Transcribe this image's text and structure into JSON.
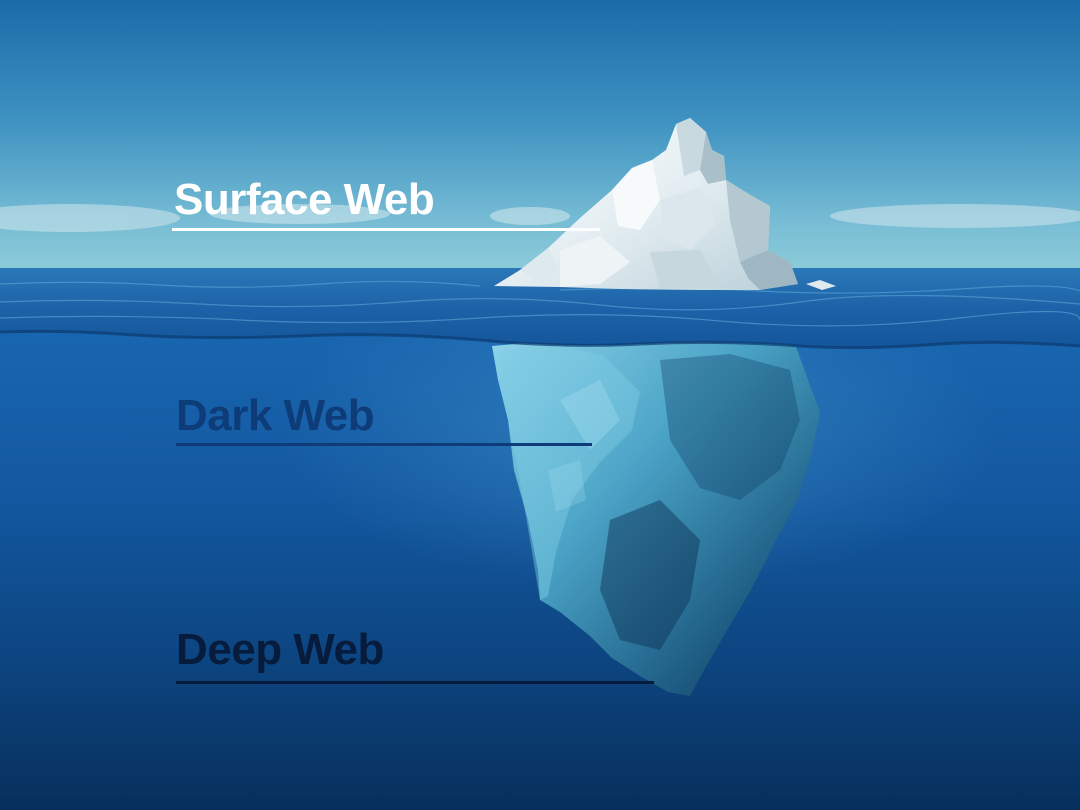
{
  "labels": {
    "surface": "Surface Web",
    "dark": "Dark Web",
    "deep": "Deep Web"
  },
  "colors": {
    "surface_text": "#ffffff",
    "dark_text": "#0d3c78",
    "deep_text": "#071c3c",
    "sky_top": "#1d6fae",
    "sky_horizon": "#7fc4d8",
    "water_surface": "#1f6db5",
    "deep_water": "#062a5a",
    "ice": "#e9f0f2"
  }
}
